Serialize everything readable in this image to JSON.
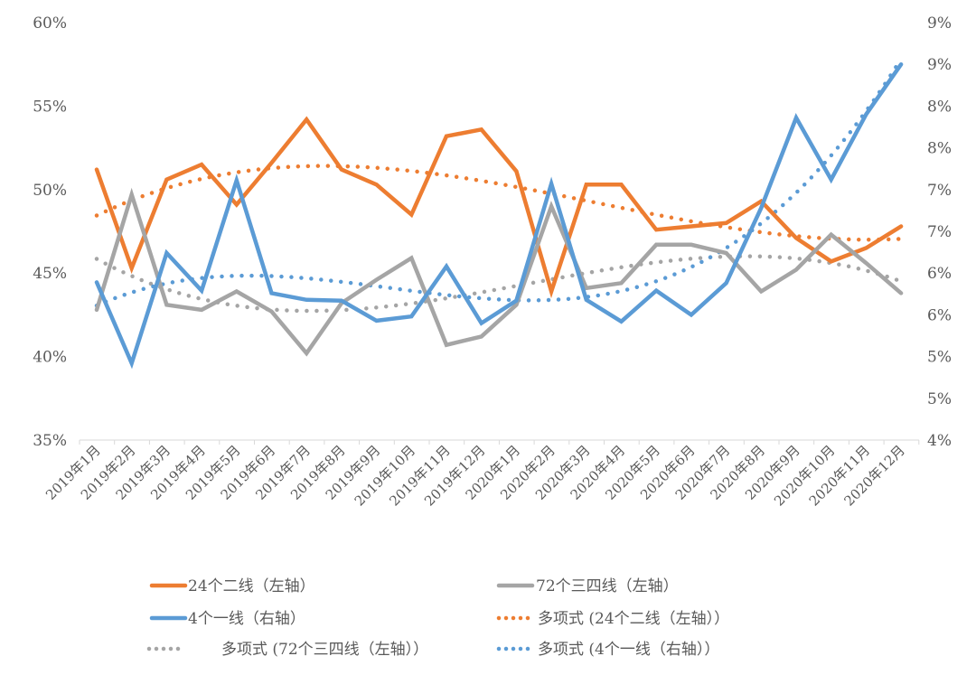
{
  "chart_data": {
    "type": "line",
    "categories": [
      "2019年1月",
      "2019年2月",
      "2019年3月",
      "2019年4月",
      "2019年5月",
      "2019年6月",
      "2019年7月",
      "2019年8月",
      "2019年9月",
      "2019年10月",
      "2019年11月",
      "2019年12月",
      "2020年1月",
      "2020年2月",
      "2020年3月",
      "2020年4月",
      "2020年5月",
      "2020年6月",
      "2020年7月",
      "2020年8月",
      "2020年9月",
      "2020年10月",
      "2020年11月",
      "2020年12月"
    ],
    "left_axis": {
      "ylim": [
        35,
        60
      ],
      "ticks": [
        "35%",
        "40%",
        "45%",
        "50%",
        "55%",
        "60%"
      ]
    },
    "right_axis": {
      "ylim": [
        4,
        9
      ],
      "ticks": [
        "4%",
        "5%",
        "5%",
        "6%",
        "6%",
        "7%",
        "7%",
        "8%",
        "8%",
        "9%",
        "9%"
      ]
    },
    "grid": false,
    "legend_placement": "bottom",
    "series": [
      {
        "name": "24个二线（左轴）",
        "axis": "left",
        "color": "#ED7D31",
        "values": [
          51.2,
          45.3,
          50.6,
          51.5,
          49.1,
          51.6,
          54.2,
          51.2,
          50.3,
          48.5,
          53.2,
          53.6,
          51.1,
          43.9,
          50.3,
          50.3,
          47.6,
          47.8,
          48.0,
          49.3,
          47.1,
          45.7,
          46.5,
          47.8
        ]
      },
      {
        "name": "72个三四线（左轴）",
        "axis": "left",
        "color": "#A5A5A5",
        "values": [
          42.8,
          49.7,
          43.1,
          42.8,
          43.9,
          42.7,
          40.2,
          43.2,
          44.6,
          45.9,
          40.7,
          41.2,
          43.1,
          49.0,
          44.1,
          44.4,
          46.7,
          46.7,
          46.2,
          43.9,
          45.2,
          47.3,
          45.6,
          43.8
        ]
      },
      {
        "name": "4个一线（右轴）",
        "axis": "right",
        "color": "#5B9BD5",
        "values": [
          5.89,
          4.92,
          6.24,
          5.79,
          7.11,
          5.76,
          5.68,
          5.67,
          5.43,
          5.48,
          6.08,
          5.4,
          5.67,
          7.07,
          5.68,
          5.42,
          5.79,
          5.5,
          5.88,
          6.78,
          7.86,
          7.12,
          7.9,
          8.5
        ]
      }
    ],
    "trendlines": [
      {
        "name": "多项式 (24个二线（左轴））",
        "of": 0,
        "type": "polynomial",
        "color": "#ED7D31"
      },
      {
        "name": "多项式 (72个三四线（左轴））",
        "of": 1,
        "type": "polynomial",
        "color": "#A5A5A5"
      },
      {
        "name": "多项式 (4个一线（右轴））",
        "of": 2,
        "type": "polynomial",
        "color": "#5B9BD5"
      }
    ]
  }
}
